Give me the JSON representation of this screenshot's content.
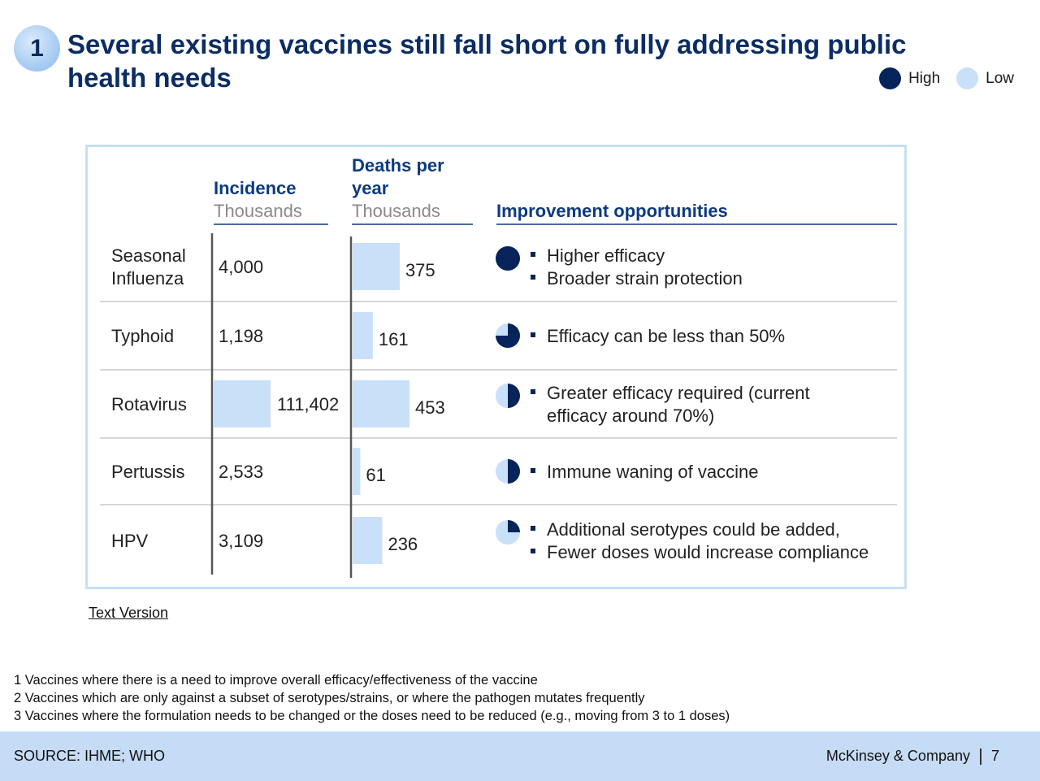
{
  "header": {
    "step_number": "1",
    "title": "Several existing vaccines still fall short on fully addressing public health needs"
  },
  "legend": {
    "high_label": "High",
    "low_label": "Low",
    "high_color": "#06245a",
    "low_color": "#c9e0f9"
  },
  "chart_data": {
    "type": "table",
    "columns": {
      "incidence_title": "Incidence",
      "incidence_unit": "Thousands",
      "deaths_title_line1": "Deaths per",
      "deaths_title_line2": "year",
      "deaths_unit": "Thousands",
      "improvement_title": "Improvement opportunities"
    },
    "bar_color": "#c9e0f9",
    "rows": [
      {
        "disease_lines": [
          "Seasonal",
          "Influenza"
        ],
        "incidence": 4000,
        "incidence_label": "4,000",
        "incidence_bar": false,
        "deaths": 375,
        "deaths_label": "375",
        "rating": 1.0,
        "opportunities": [
          "Higher efficacy",
          "Broader strain protection"
        ]
      },
      {
        "disease_lines": [
          "Typhoid"
        ],
        "incidence": 1198,
        "incidence_label": "1,198",
        "incidence_bar": false,
        "deaths": 161,
        "deaths_label": "161",
        "rating": 0.75,
        "opportunities": [
          "Efficacy can be less than 50%"
        ]
      },
      {
        "disease_lines": [
          "Rotavirus"
        ],
        "incidence": 111402,
        "incidence_label": "111,402",
        "incidence_bar": true,
        "deaths": 453,
        "deaths_label": "453",
        "rating": 0.5,
        "opportunities": [
          "Greater efficacy required (current\nefficacy around 70%)"
        ]
      },
      {
        "disease_lines": [
          "Pertussis"
        ],
        "incidence": 2533,
        "incidence_label": "2,533",
        "incidence_bar": false,
        "deaths": 61,
        "deaths_label": "61",
        "rating": 0.5,
        "opportunities": [
          "Immune waning of vaccine"
        ]
      },
      {
        "disease_lines": [
          "HPV"
        ],
        "incidence": 3109,
        "incidence_label": "3,109",
        "incidence_bar": false,
        "deaths": 236,
        "deaths_label": "236",
        "rating": 0.25,
        "opportunities": [
          "Additional serotypes could be added,",
          "Fewer doses would increase compliance"
        ]
      }
    ]
  },
  "links": {
    "text_version": "Text Version"
  },
  "footnotes": [
    "1 Vaccines where there is a need to improve overall efficacy/effectiveness of the vaccine",
    "2 Vaccines which are only against a subset of serotypes/strains, or where the pathogen mutates frequently",
    "3 Vaccines where the formulation needs to be changed or the doses need to be reduced (e.g., moving from 3 to 1 doses)"
  ],
  "footer": {
    "source": "SOURCE: IHME; WHO",
    "brand": "McKinsey & Company",
    "page_number": "7"
  }
}
